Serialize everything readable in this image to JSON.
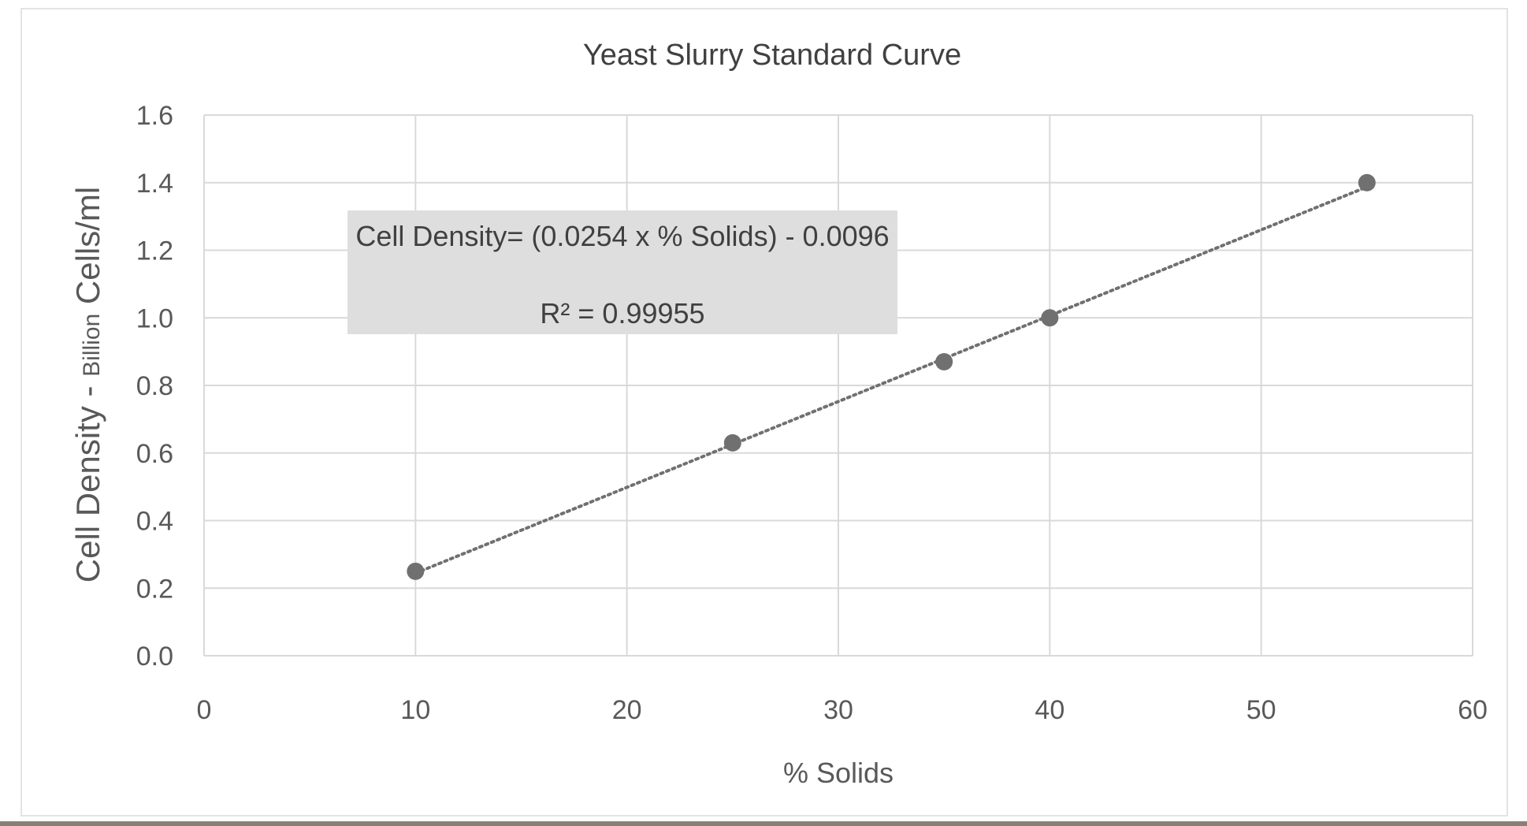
{
  "chart_data": {
    "type": "scatter",
    "title": "Yeast Slurry Standard Curve",
    "xlabel": "% Solids",
    "ylabel": {
      "main": "Cell Density - ",
      "sub": "Billion",
      "tail": " Cells/ml"
    },
    "xlim": [
      0,
      60
    ],
    "ylim": [
      0,
      1.6
    ],
    "x_ticks": [
      "0",
      "10",
      "20",
      "30",
      "40",
      "50",
      "60"
    ],
    "y_ticks": [
      "0.0",
      "0.2",
      "0.4",
      "0.6",
      "0.8",
      "1.0",
      "1.2",
      "1.4",
      "1.6"
    ],
    "grid": true,
    "series": [
      {
        "x": [
          10,
          25,
          35,
          40,
          55
        ],
        "y": [
          0.25,
          0.63,
          0.87,
          1.0,
          1.4
        ],
        "marker_color": "#707070"
      }
    ],
    "trendline": {
      "style": "dotted",
      "color": "#707070",
      "slope": 0.0254,
      "intercept": -0.0096,
      "x_range": [
        10,
        55
      ]
    },
    "annotation": {
      "equation": "Cell Density= (0.0254 x % Solids) - 0.0096",
      "r_squared": "R² = 0.99955",
      "background": "#dedede"
    },
    "colors": {
      "grid": "#d9d9d9",
      "axis": "#d9d9d9",
      "text": "#595959"
    }
  }
}
